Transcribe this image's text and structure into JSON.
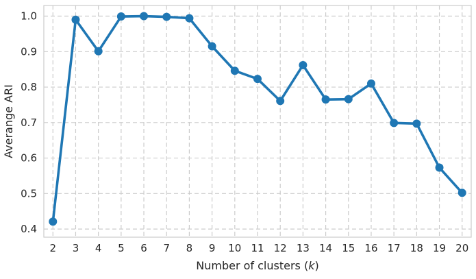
{
  "chart_data": {
    "type": "line",
    "title": "",
    "xlabel": "Number of clusters (k)",
    "xlabel_parts": {
      "prefix": "Number of clusters (",
      "var": "k",
      "suffix": ")"
    },
    "ylabel": "Averange ARI",
    "x": [
      2,
      3,
      4,
      5,
      6,
      7,
      8,
      9,
      10,
      11,
      12,
      13,
      14,
      15,
      16,
      17,
      18,
      19,
      20
    ],
    "series": [
      {
        "values": [
          0.421,
          0.99,
          0.901,
          0.999,
          1.0,
          0.998,
          0.994,
          0.915,
          0.846,
          0.823,
          0.761,
          0.862,
          0.765,
          0.766,
          0.81,
          0.699,
          0.697,
          0.573,
          0.502
        ],
        "color": "#1f77b4"
      }
    ],
    "xlim": [
      1.6,
      20.4
    ],
    "ylim": [
      0.377,
      1.03
    ],
    "yticks": [
      0.4,
      0.5,
      0.6,
      0.7,
      0.8,
      0.9,
      1.0
    ],
    "ytick_labels": [
      "0.4",
      "0.5",
      "0.6",
      "0.7",
      "0.8",
      "0.9",
      "1.0"
    ],
    "xtick_labels": [
      "2",
      "3",
      "4",
      "5",
      "6",
      "7",
      "8",
      "9",
      "10",
      "11",
      "12",
      "13",
      "14",
      "15",
      "16",
      "17",
      "18",
      "19",
      "20"
    ],
    "grid": true,
    "legend": false
  }
}
